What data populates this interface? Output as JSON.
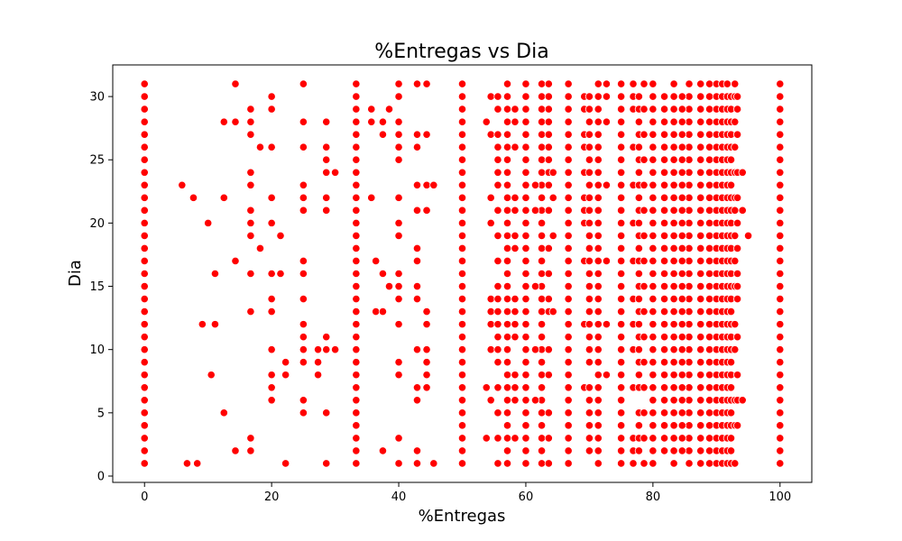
{
  "chart_data": {
    "type": "scatter",
    "title": "%Entregas vs Dia",
    "xlabel": "%Entregas",
    "ylabel": "Dia",
    "xlim": [
      -5,
      105
    ],
    "ylim": [
      -0.5,
      32.5
    ],
    "xticks": [
      0,
      20,
      40,
      60,
      80,
      100
    ],
    "yticks": [
      0,
      5,
      10,
      15,
      20,
      25,
      30
    ],
    "grid": false,
    "marker_color": "#ff0000",
    "x_columns": [
      0,
      5.9,
      6.7,
      7.7,
      8.3,
      9.1,
      10,
      10.5,
      11.1,
      12.5,
      14.3,
      15.4,
      16.7,
      18.2,
      20,
      21.4,
      22.2,
      25,
      27.3,
      28.6,
      30,
      33.3,
      35.7,
      36.4,
      37.5,
      38.5,
      40,
      42.9,
      44.4,
      45.5,
      50,
      53.8,
      54.5,
      55.6,
      57.1,
      58.3,
      60,
      61.5,
      62.5,
      63.6,
      64.3,
      66.7,
      69.2,
      70,
      71.4,
      72.7,
      75,
      76.9,
      77.8,
      78.6,
      80,
      81.8,
      83.3,
      84.6,
      85.7,
      87.5,
      88.9,
      90,
      90.9,
      91.7,
      92.3,
      92.9,
      93.3,
      94.1,
      95,
      100
    ],
    "columns_full": [
      0,
      33.3,
      50,
      57.1,
      60,
      62.5,
      66.7,
      71.4,
      75,
      80,
      83.3,
      85.7,
      87.5,
      88.9,
      90,
      90.9,
      91.7,
      100
    ],
    "columns_sparse": [
      {
        "x": 5.9,
        "days": [
          23
        ]
      },
      {
        "x": 6.7,
        "days": [
          1
        ]
      },
      {
        "x": 7.7,
        "days": [
          22
        ]
      },
      {
        "x": 8.3,
        "days": [
          1
        ]
      },
      {
        "x": 9.1,
        "days": [
          12
        ]
      },
      {
        "x": 10,
        "days": [
          20
        ]
      },
      {
        "x": 10.5,
        "days": [
          8
        ]
      },
      {
        "x": 11.1,
        "days": [
          12,
          16
        ]
      },
      {
        "x": 12.5,
        "days": [
          5,
          22,
          28
        ]
      },
      {
        "x": 14.3,
        "days": [
          2,
          17,
          28,
          31
        ]
      },
      {
        "x": 16.7,
        "days": [
          2,
          3,
          13,
          16,
          19,
          20,
          21,
          23,
          24,
          27,
          28,
          29
        ]
      },
      {
        "x": 18.2,
        "days": [
          18,
          26
        ]
      },
      {
        "x": 20,
        "days": [
          6,
          7,
          8,
          10,
          13,
          14,
          16,
          20,
          22,
          26,
          29,
          30
        ]
      },
      {
        "x": 21.4,
        "days": [
          16,
          19
        ]
      },
      {
        "x": 22.2,
        "days": [
          1,
          8,
          9
        ]
      },
      {
        "x": 25,
        "days": [
          5,
          6,
          9,
          10,
          11,
          12,
          14,
          16,
          17,
          21,
          22,
          23,
          26,
          28,
          31
        ]
      },
      {
        "x": 27.3,
        "days": [
          8,
          9,
          10
        ]
      },
      {
        "x": 28.6,
        "days": [
          1,
          5,
          10,
          11,
          21,
          22,
          24,
          25,
          26,
          28
        ]
      },
      {
        "x": 30,
        "days": [
          10,
          24
        ]
      },
      {
        "x": 35.7,
        "days": [
          22,
          28,
          29
        ]
      },
      {
        "x": 36.4,
        "days": [
          13,
          17
        ]
      },
      {
        "x": 37.5,
        "days": [
          2,
          13,
          16,
          27,
          28
        ]
      },
      {
        "x": 38.5,
        "days": [
          15,
          29
        ]
      },
      {
        "x": 40,
        "days": [
          1,
          3,
          8,
          9,
          12,
          14,
          15,
          16,
          19,
          20,
          22,
          25,
          26,
          27,
          28,
          30,
          31
        ]
      },
      {
        "x": 42.9,
        "days": [
          1,
          2,
          6,
          7,
          10,
          14,
          15,
          17,
          18,
          21,
          23,
          26,
          27,
          31
        ]
      },
      {
        "x": 44.4,
        "days": [
          7,
          8,
          9,
          10,
          12,
          13,
          21,
          23,
          27,
          31
        ]
      },
      {
        "x": 45.5,
        "days": [
          1,
          23
        ]
      },
      {
        "x": 53.8,
        "days": [
          3,
          7,
          28
        ]
      },
      {
        "x": 54.5,
        "days": [
          6,
          10,
          12,
          13,
          14,
          20,
          22,
          27,
          30
        ]
      },
      {
        "x": 55.6,
        "days": [
          1,
          3,
          5,
          7,
          9,
          10,
          11,
          12,
          13,
          14,
          15,
          17,
          19,
          21,
          23,
          24,
          25,
          26,
          27,
          29,
          30
        ]
      },
      {
        "x": 58.3,
        "days": [
          3,
          6,
          7,
          8,
          11,
          12,
          13,
          14,
          18,
          19,
          21,
          22,
          26,
          28,
          29
        ]
      },
      {
        "x": 61.5,
        "days": [
          6,
          10,
          15,
          21,
          23
        ]
      },
      {
        "x": 63.6,
        "days": [
          1,
          3,
          5,
          8,
          10,
          13,
          14,
          16,
          18,
          21,
          23,
          24,
          25,
          26,
          27,
          28,
          29,
          30,
          31
        ]
      },
      {
        "x": 64.3,
        "days": [
          13,
          19,
          22,
          24
        ]
      },
      {
        "x": 69.2,
        "days": [
          7,
          12,
          17,
          20,
          21,
          22,
          24,
          26,
          27,
          29,
          30
        ]
      },
      {
        "x": 70,
        "days": [
          2,
          3,
          4,
          5,
          6,
          7,
          9,
          10,
          11,
          12,
          13,
          14,
          15,
          16,
          17,
          18,
          19,
          20,
          21,
          22,
          23,
          24,
          25,
          26,
          27,
          28,
          29,
          30
        ]
      },
      {
        "x": 72.7,
        "days": [
          8,
          12,
          17,
          23,
          28,
          30,
          31
        ]
      },
      {
        "x": 76.9,
        "days": [
          1,
          2,
          3,
          7,
          10,
          12,
          14,
          17,
          20,
          23,
          26,
          29,
          30,
          31
        ]
      },
      {
        "x": 77.8,
        "days": [
          2,
          3,
          4,
          5,
          7,
          8,
          9,
          10,
          11,
          12,
          13,
          14,
          15,
          16,
          17,
          18,
          19,
          20,
          21,
          22,
          23,
          24,
          25,
          26,
          27,
          28,
          29,
          30
        ]
      },
      {
        "x": 78.6,
        "days": [
          1,
          3,
          5,
          7,
          9,
          11,
          13,
          15,
          17,
          19,
          21,
          23,
          25,
          27,
          29,
          31
        ]
      },
      {
        "x": 81.8,
        "days": [
          2,
          3,
          4,
          5,
          6,
          7,
          8,
          9,
          10,
          11,
          12,
          13,
          14,
          15,
          16,
          17,
          18,
          19,
          20,
          21,
          22,
          23,
          24,
          25,
          26,
          27,
          28,
          29,
          30
        ]
      },
      {
        "x": 84.6,
        "days": [
          2,
          3,
          4,
          5,
          6,
          7,
          8,
          9,
          10,
          11,
          12,
          13,
          14,
          15,
          16,
          17,
          18,
          19,
          20,
          21,
          22,
          23,
          24,
          25,
          26,
          27,
          28,
          29,
          30
        ]
      },
      {
        "x": 92.3,
        "days": [
          1,
          2,
          3,
          4,
          5,
          6,
          7,
          8,
          9,
          10,
          11,
          12,
          13,
          14,
          15,
          16,
          17,
          18,
          19,
          20,
          21,
          22,
          23,
          24,
          25,
          26,
          27,
          28,
          29,
          30
        ]
      },
      {
        "x": 92.9,
        "days": [
          1,
          4,
          6,
          10,
          12,
          15,
          17,
          19,
          21,
          22,
          24,
          26,
          28,
          30,
          31
        ]
      },
      {
        "x": 93.3,
        "days": [
          4,
          6,
          8,
          11,
          14,
          15,
          16,
          18,
          20,
          22,
          24,
          27,
          29,
          30
        ]
      },
      {
        "x": 94.1,
        "days": [
          6,
          21,
          24
        ]
      },
      {
        "x": 95,
        "days": [
          19
        ]
      }
    ]
  }
}
